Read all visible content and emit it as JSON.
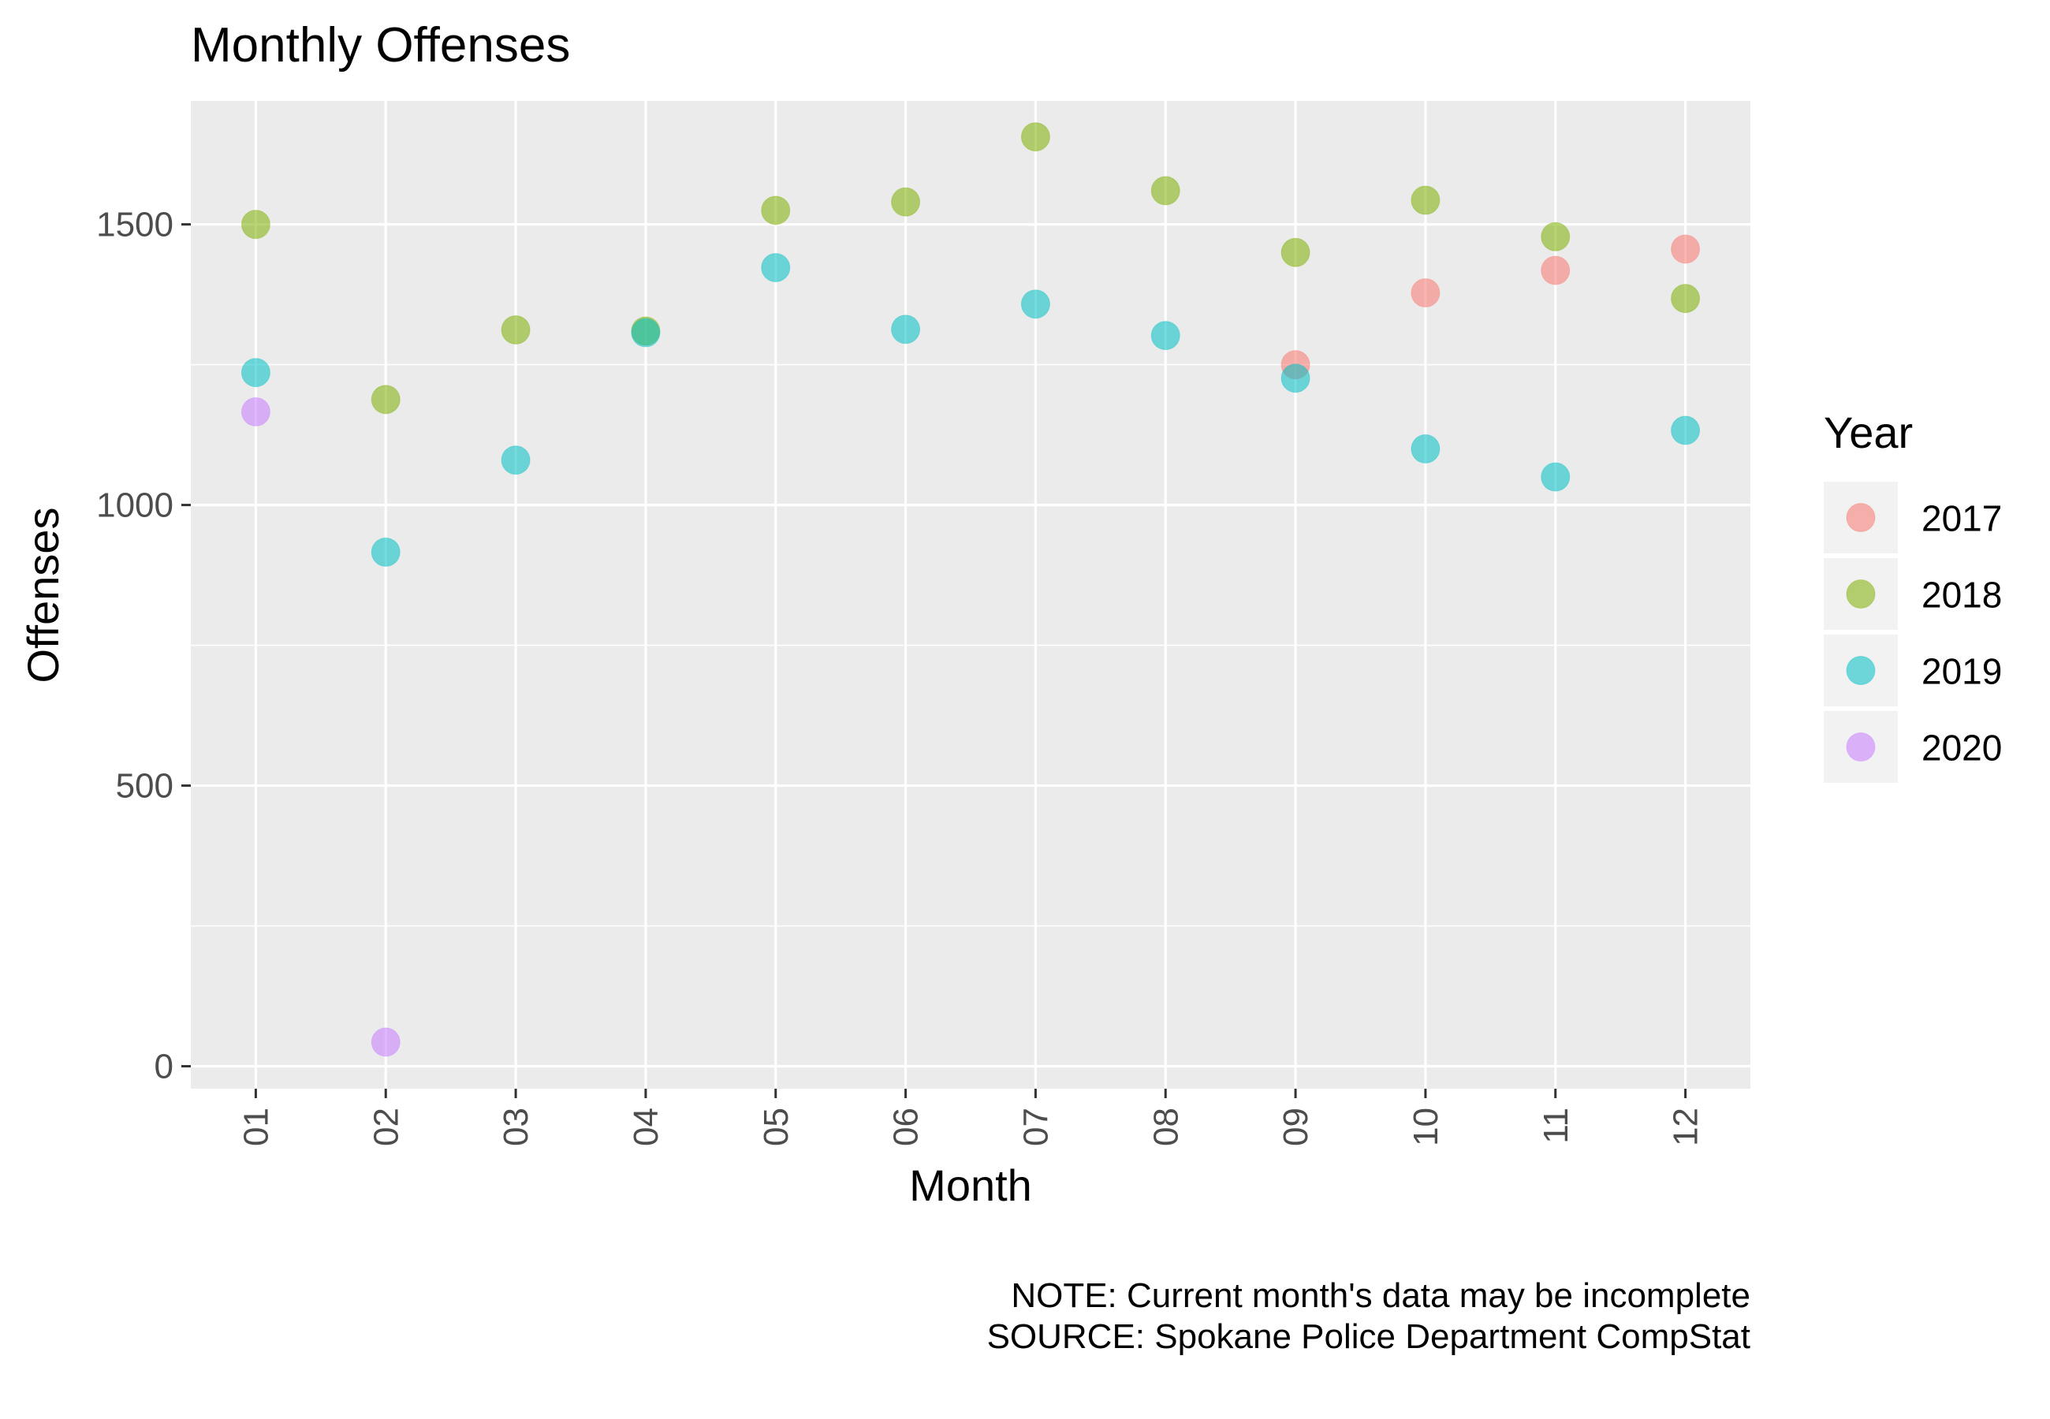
{
  "chart_data": {
    "type": "scatter",
    "title": "Monthly Offenses",
    "xlabel": "Month",
    "ylabel": "Offenses",
    "categories": [
      "01",
      "02",
      "03",
      "04",
      "05",
      "06",
      "07",
      "08",
      "09",
      "10",
      "11",
      "12"
    ],
    "yticks": [
      "0",
      "500",
      "1000",
      "1500"
    ],
    "ylim": [
      -40,
      1720
    ],
    "grid": true,
    "legend": {
      "title": "Year",
      "position": "right"
    },
    "series": [
      {
        "name": "2017",
        "color": "#F8766D",
        "points": [
          [
            9,
            1250
          ],
          [
            10,
            1378
          ],
          [
            11,
            1418
          ],
          [
            12,
            1456
          ]
        ]
      },
      {
        "name": "2018",
        "color": "#7CAE00",
        "points": [
          [
            1,
            1500
          ],
          [
            2,
            1188
          ],
          [
            3,
            1312
          ],
          [
            4,
            1310
          ],
          [
            5,
            1525
          ],
          [
            6,
            1540
          ],
          [
            7,
            1656
          ],
          [
            8,
            1560
          ],
          [
            9,
            1450
          ],
          [
            10,
            1543
          ],
          [
            11,
            1478
          ],
          [
            12,
            1368
          ]
        ]
      },
      {
        "name": "2019",
        "color": "#00BFC4",
        "points": [
          [
            1,
            1236
          ],
          [
            2,
            916
          ],
          [
            3,
            1080
          ],
          [
            4,
            1307
          ],
          [
            5,
            1423
          ],
          [
            6,
            1313
          ],
          [
            7,
            1358
          ],
          [
            8,
            1302
          ],
          [
            9,
            1226
          ],
          [
            10,
            1100
          ],
          [
            11,
            1050
          ],
          [
            12,
            1133
          ]
        ]
      },
      {
        "name": "2020",
        "color": "#C77CFF",
        "points": [
          [
            1,
            1166
          ],
          [
            2,
            43
          ]
        ]
      }
    ],
    "caption": [
      "NOTE: Current month's data may be incomplete",
      "SOURCE: Spokane Police Department CompStat"
    ]
  }
}
